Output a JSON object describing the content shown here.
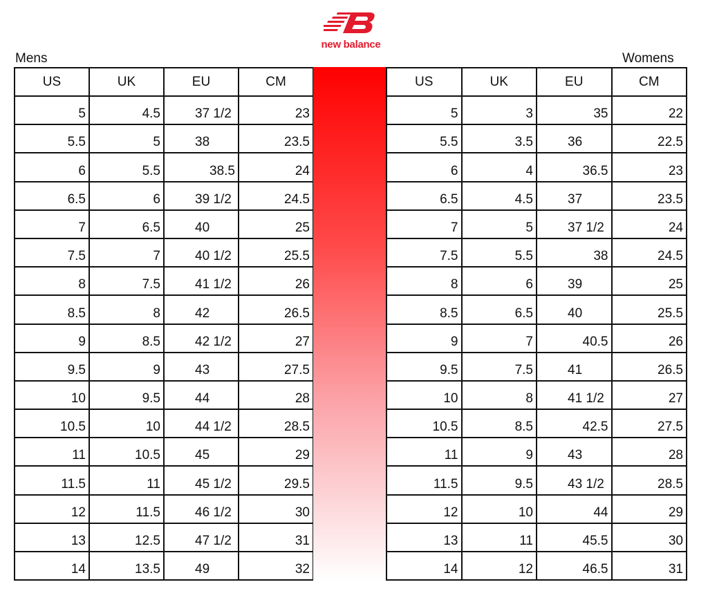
{
  "brand": {
    "name": "new balance",
    "color": "#e21b2d"
  },
  "gradient_color": "#ff0000",
  "mens": {
    "title": "Mens",
    "headers": [
      "US",
      "UK",
      "EU",
      "CM"
    ],
    "rows": [
      [
        "5",
        "4.5",
        "37 1/2",
        "23"
      ],
      [
        "5.5",
        "5",
        "38",
        "23.5"
      ],
      [
        "6",
        "5.5",
        "38.5",
        "24"
      ],
      [
        "6.5",
        "6",
        "39 1/2",
        "24.5"
      ],
      [
        "7",
        "6.5",
        "40",
        "25"
      ],
      [
        "7.5",
        "7",
        "40 1/2",
        "25.5"
      ],
      [
        "8",
        "7.5",
        "41 1/2",
        "26"
      ],
      [
        "8.5",
        "8",
        "42",
        "26.5"
      ],
      [
        "9",
        "8.5",
        "42 1/2",
        "27"
      ],
      [
        "9.5",
        "9",
        "43",
        "27.5"
      ],
      [
        "10",
        "9.5",
        "44",
        "28"
      ],
      [
        "10.5",
        "10",
        "44 1/2",
        "28.5"
      ],
      [
        "11",
        "10.5",
        "45",
        "29"
      ],
      [
        "11.5",
        "11",
        "45 1/2",
        "29.5"
      ],
      [
        "12",
        "11.5",
        "46 1/2",
        "30"
      ],
      [
        "13",
        "12.5",
        "47 1/2",
        "31"
      ],
      [
        "14",
        "13.5",
        "49",
        "32"
      ]
    ]
  },
  "womens": {
    "title": "Womens",
    "headers": [
      "US",
      "UK",
      "EU",
      "CM"
    ],
    "rows": [
      [
        "5",
        "3",
        "35",
        "22"
      ],
      [
        "5.5",
        "3.5",
        "36",
        "22.5"
      ],
      [
        "6",
        "4",
        "36.5",
        "23"
      ],
      [
        "6.5",
        "4.5",
        "37",
        "23.5"
      ],
      [
        "7",
        "5",
        "37 1/2",
        "24"
      ],
      [
        "7.5",
        "5.5",
        "38",
        "24.5"
      ],
      [
        "8",
        "6",
        "39",
        "25"
      ],
      [
        "8.5",
        "6.5",
        "40",
        "25.5"
      ],
      [
        "9",
        "7",
        "40.5",
        "26"
      ],
      [
        "9.5",
        "7.5",
        "41",
        "26.5"
      ],
      [
        "10",
        "8",
        "41 1/2",
        "27"
      ],
      [
        "10.5",
        "8.5",
        "42.5",
        "27.5"
      ],
      [
        "11",
        "9",
        "43",
        "28"
      ],
      [
        "11.5",
        "9.5",
        "43 1/2",
        "28.5"
      ],
      [
        "12",
        "10",
        "44",
        "29"
      ],
      [
        "13",
        "11",
        "45.5",
        "30"
      ],
      [
        "14",
        "12",
        "46.5",
        "31"
      ]
    ]
  }
}
